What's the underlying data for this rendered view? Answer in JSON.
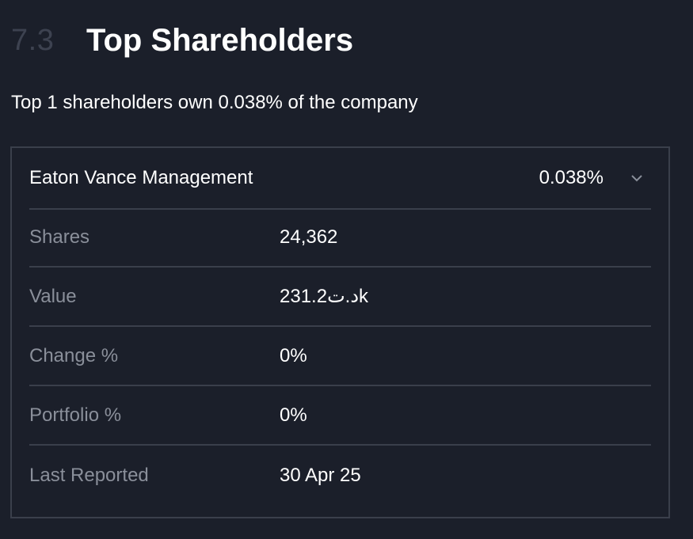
{
  "section": {
    "number": "7.3",
    "title": "Top Shareholders"
  },
  "summary": "Top 1 shareholders own 0.038% of the company",
  "holder": {
    "name": "Eaton Vance Management",
    "percent": "0.038%",
    "expand_icon": "chevron-down-icon"
  },
  "details": [
    {
      "label": "Shares",
      "value": "24,362"
    },
    {
      "label": "Value",
      "value": "231.2د.تk"
    },
    {
      "label": "Change %",
      "value": "0%"
    },
    {
      "label": "Portfolio %",
      "value": "0%"
    },
    {
      "label": "Last Reported",
      "value": "30 Apr 25"
    }
  ],
  "colors": {
    "background": "#1b1f2a",
    "border": "#3a3f4b",
    "muted_text": "#8a8f9a",
    "section_number": "#3d4250"
  }
}
